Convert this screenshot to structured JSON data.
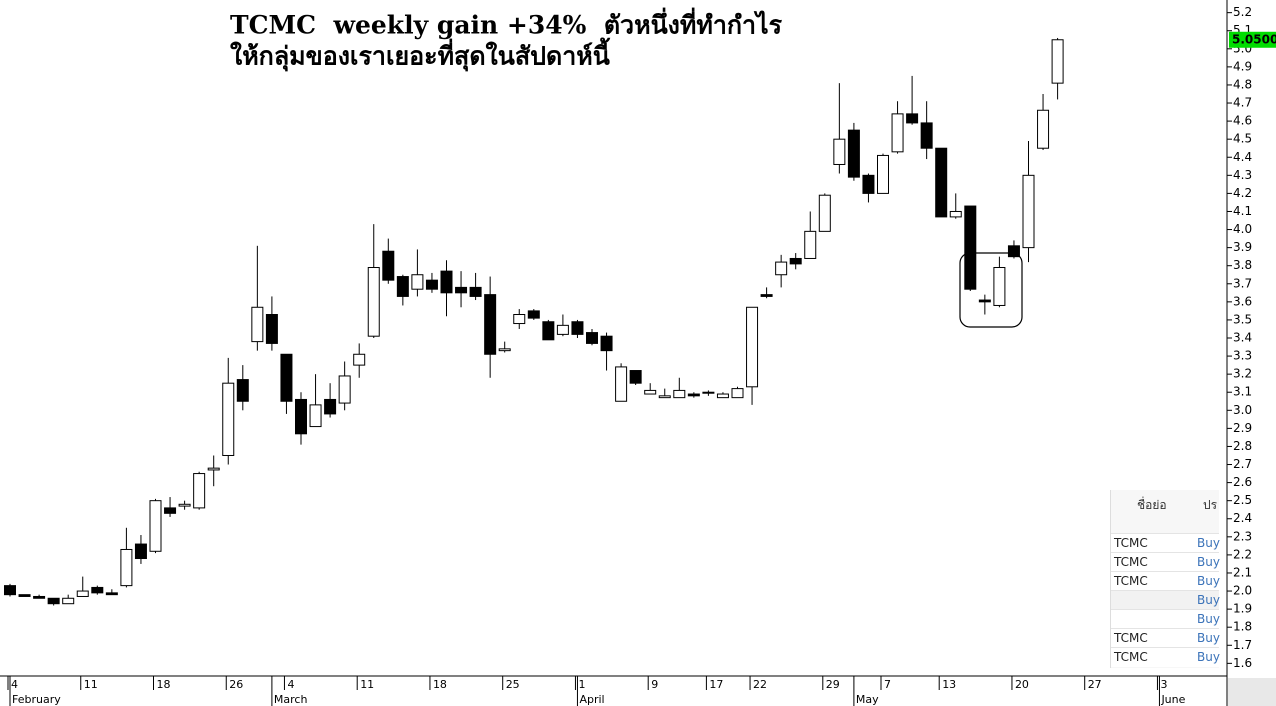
{
  "chart_data": {
    "type": "candlestick",
    "title": "TCMC  weekly gain +34%  ตัวหนึ่งที่ทำกำไร",
    "subtitle": "ให้กลุ่มของเราเยอะที่สุดในสัปดาห์นี้",
    "categories": [
      "4",
      null,
      null,
      null,
      null,
      "11",
      null,
      null,
      null,
      null,
      "18",
      null,
      null,
      null,
      null,
      "26",
      null,
      null,
      null,
      "4",
      null,
      null,
      null,
      null,
      "11",
      null,
      null,
      null,
      null,
      "18",
      null,
      null,
      null,
      null,
      "25",
      null,
      null,
      null,
      null,
      "1",
      null,
      null,
      null,
      null,
      "9",
      null,
      null,
      null,
      "17",
      null,
      null,
      "22",
      null,
      null,
      null,
      null,
      "29",
      null,
      null,
      null,
      "7",
      null,
      null,
      null,
      "13",
      null,
      null,
      null,
      null,
      "20",
      null,
      null,
      null,
      null,
      "27",
      null,
      null,
      null,
      null,
      "3",
      null,
      null,
      null,
      null
    ],
    "month_labels": [
      "February",
      null,
      null,
      null,
      null,
      null,
      null,
      null,
      null,
      null,
      null,
      null,
      null,
      null,
      null,
      null,
      null,
      null,
      "March",
      null,
      null,
      null,
      null,
      null,
      null,
      null,
      null,
      null,
      null,
      null,
      null,
      null,
      null,
      null,
      null,
      null,
      null,
      null,
      null,
      "April",
      null,
      null,
      null,
      null,
      null,
      null,
      null,
      null,
      null,
      null,
      null,
      null,
      null,
      null,
      null,
      null,
      null,
      null,
      "May",
      null,
      null,
      null,
      null,
      null,
      null,
      null,
      null,
      null,
      null,
      null,
      null,
      null,
      null,
      null,
      null,
      null,
      null,
      null,
      null,
      "June",
      null,
      null,
      null,
      null
    ],
    "open": [
      2.03,
      1.98,
      1.97,
      1.96,
      1.93,
      1.97,
      2.02,
      1.99,
      2.03,
      2.26,
      2.22,
      2.46,
      2.47,
      2.46,
      2.67,
      2.75,
      3.17,
      3.38,
      3.53,
      3.31,
      3.06,
      2.91,
      3.06,
      3.04,
      3.25,
      3.41,
      3.88,
      3.74,
      3.67,
      3.72,
      3.77,
      3.68,
      3.68,
      3.64,
      3.33,
      3.48,
      3.55,
      3.49,
      3.42,
      3.49,
      3.43,
      3.41,
      3.05,
      3.22,
      3.09,
      3.07,
      3.07,
      3.09,
      3.1,
      3.07,
      3.07,
      3.13,
      3.64,
      3.75,
      3.84,
      3.84,
      3.99,
      4.36,
      4.55,
      4.3,
      4.2,
      4.43,
      4.64,
      4.59,
      4.45,
      4.07,
      4.13,
      3.61,
      3.58,
      3.91,
      3.9,
      4.45,
      4.81,
      null,
      null,
      null,
      null,
      null,
      null,
      null,
      null,
      null,
      null,
      null
    ],
    "high": [
      2.04,
      1.98,
      1.98,
      1.96,
      1.98,
      2.08,
      2.03,
      2.01,
      2.35,
      2.31,
      2.51,
      2.52,
      2.5,
      2.66,
      2.75,
      3.29,
      3.25,
      3.91,
      3.63,
      3.31,
      3.1,
      3.2,
      3.15,
      3.27,
      3.37,
      4.03,
      3.95,
      3.75,
      3.89,
      3.76,
      3.83,
      3.77,
      3.76,
      3.74,
      3.38,
      3.56,
      3.56,
      3.5,
      3.53,
      3.5,
      3.45,
      3.43,
      3.26,
      3.22,
      3.15,
      3.12,
      3.18,
      3.1,
      3.11,
      3.1,
      3.13,
      3.57,
      3.68,
      3.86,
      3.87,
      4.1,
      4.2,
      4.81,
      4.59,
      4.31,
      4.42,
      4.71,
      4.85,
      4.71,
      4.45,
      4.2,
      4.13,
      3.64,
      3.85,
      3.94,
      4.49,
      4.75,
      5.06,
      null,
      null,
      null,
      null,
      null,
      null,
      null,
      null,
      null,
      null,
      null
    ],
    "low": [
      1.97,
      1.97,
      1.96,
      1.92,
      1.93,
      1.97,
      1.98,
      1.98,
      2.02,
      2.15,
      2.21,
      2.41,
      2.45,
      2.45,
      2.58,
      2.7,
      3.0,
      3.33,
      3.33,
      2.98,
      2.81,
      2.91,
      2.96,
      3.0,
      3.18,
      3.4,
      3.7,
      3.58,
      3.63,
      3.65,
      3.52,
      3.57,
      3.61,
      3.18,
      3.32,
      3.45,
      3.5,
      3.39,
      3.41,
      3.4,
      3.36,
      3.22,
      3.05,
      3.14,
      3.09,
      3.07,
      3.07,
      3.07,
      3.08,
      3.07,
      3.07,
      3.03,
      3.62,
      3.68,
      3.78,
      3.84,
      3.99,
      4.31,
      4.27,
      4.15,
      4.2,
      4.42,
      4.58,
      4.39,
      4.07,
      4.06,
      3.66,
      3.53,
      3.57,
      3.84,
      3.82,
      4.44,
      4.72,
      null,
      null,
      null,
      null,
      null,
      null,
      null,
      null,
      null,
      null,
      null
    ],
    "close": [
      1.98,
      1.97,
      1.96,
      1.93,
      1.96,
      2.0,
      1.99,
      1.98,
      2.23,
      2.18,
      2.5,
      2.43,
      2.48,
      2.65,
      2.68,
      3.15,
      3.05,
      3.57,
      3.37,
      3.05,
      2.87,
      3.03,
      2.98,
      3.19,
      3.31,
      3.79,
      3.72,
      3.63,
      3.75,
      3.67,
      3.65,
      3.65,
      3.63,
      3.31,
      3.34,
      3.53,
      3.51,
      3.39,
      3.47,
      3.42,
      3.37,
      3.33,
      3.24,
      3.15,
      3.11,
      3.08,
      3.11,
      3.08,
      3.1,
      3.09,
      3.12,
      3.57,
      3.63,
      3.82,
      3.81,
      3.99,
      4.19,
      4.5,
      4.29,
      4.2,
      4.41,
      4.64,
      4.59,
      4.45,
      4.07,
      4.1,
      3.67,
      3.6,
      3.79,
      3.85,
      4.3,
      4.66,
      5.05,
      null,
      null,
      null,
      null,
      null,
      null,
      null,
      null,
      null,
      null,
      null
    ],
    "up_color": "#ffffff",
    "down_color": "#000000",
    "ylim": [
      1.53,
      5.27
    ],
    "yticks": [
      1.6,
      1.7,
      1.8,
      1.9,
      {
        "value": 2.0,
        "label": "2.0"
      },
      2.1,
      2.2,
      2.3,
      2.4,
      2.5,
      2.6,
      2.7,
      2.8,
      2.9,
      {
        "value": 3.0,
        "label": "3.0"
      },
      3.1,
      3.2,
      3.3,
      3.4,
      3.5,
      3.6,
      3.7,
      3.8,
      3.9,
      {
        "value": 4.0,
        "label": "4.0"
      },
      4.1,
      4.2,
      4.3,
      4.4,
      4.5,
      4.6,
      4.7,
      4.8,
      4.9,
      {
        "value": 5.0,
        "label": "5.0"
      },
      5.1,
      5.2
    ],
    "last_price": {
      "value": 5.05,
      "label": "5.0500"
    }
  },
  "side_table": {
    "headers": [
      "ชื่อย่อ",
      "ปร"
    ],
    "rows": [
      [
        "TCMC",
        "Buy"
      ],
      [
        "TCMC",
        "Buy"
      ],
      [
        "TCMC",
        "Buy"
      ],
      [
        null,
        "Buy"
      ],
      [
        null,
        "Buy"
      ],
      [
        "TCMC",
        "Buy"
      ],
      [
        "TCMC",
        "Buy"
      ]
    ]
  }
}
